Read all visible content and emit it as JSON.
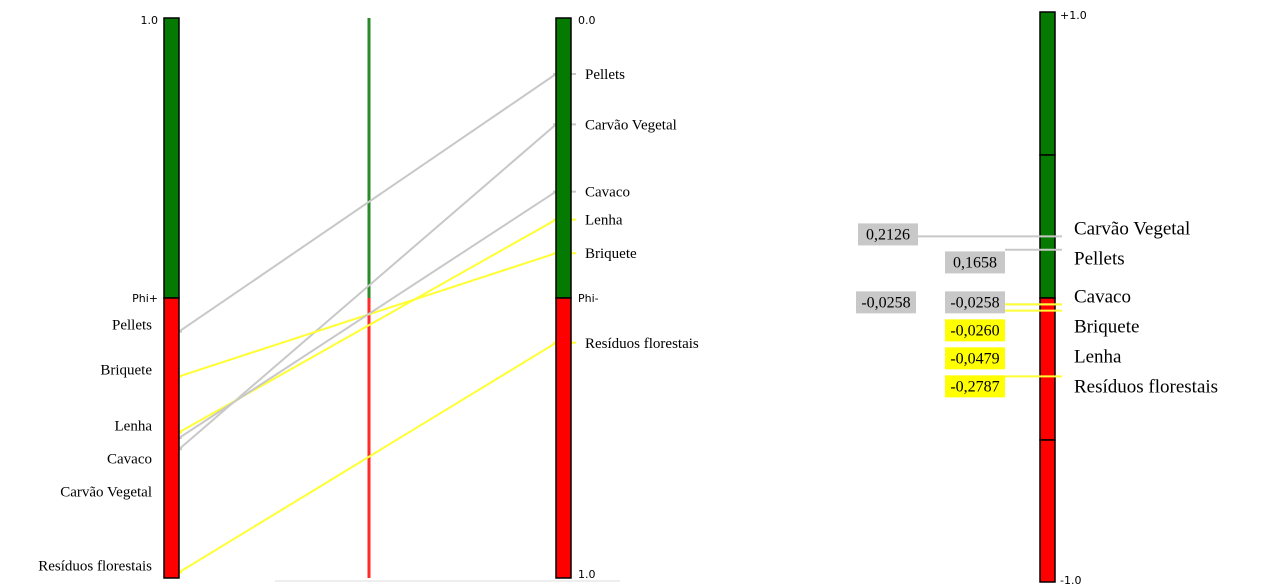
{
  "chart_data": [
    {
      "type": "line",
      "title": "",
      "left_axis": {
        "top_label": "1.0",
        "mid_label": "Phi+"
      },
      "right_axis": {
        "top_label": "0.0",
        "mid_label": "Phi-",
        "bottom_label": "1.0"
      },
      "items": [
        {
          "name": "Carvão Vegetal",
          "phi_plus": 0.23,
          "phi_minus": 0.19,
          "color": "#c8c8c8"
        },
        {
          "name": "Pellets",
          "phi_plus": 0.44,
          "phi_minus": 0.1,
          "color": "#c8c8c8"
        },
        {
          "name": "Briquete",
          "phi_plus": 0.36,
          "phi_minus": 0.42,
          "color": "#ffff33"
        },
        {
          "name": "Lenha",
          "phi_plus": 0.26,
          "phi_minus": 0.36,
          "color": "#ffff33"
        },
        {
          "name": "Cavaco",
          "phi_plus": 0.25,
          "phi_minus": 0.31,
          "color": "#c8c8c8"
        },
        {
          "name": "Resíduos florestais",
          "phi_plus": 0.01,
          "phi_minus": 0.58,
          "color": "#ffff33"
        }
      ]
    },
    {
      "type": "bar",
      "axis": {
        "top_label": "+1.0",
        "bottom_label": "-1.0"
      },
      "items": [
        {
          "name": "Carvão Vegetal",
          "phi": 0.2126,
          "value_label": "0,2126",
          "highlight": "#c8c8c8"
        },
        {
          "name": "Pellets",
          "phi": 0.1658,
          "value_label": "0,1658",
          "highlight": "#c8c8c8"
        },
        {
          "name": "Cavaco",
          "phi": -0.0258,
          "value_label": "-0,0258",
          "highlight": "#c8c8c8"
        },
        {
          "name": "Briquete",
          "phi": -0.026,
          "value_label": "-0,0260",
          "highlight": "#ffff00"
        },
        {
          "name": "Lenha",
          "phi": -0.0479,
          "value_label": "-0,0479",
          "highlight": "#ffff00"
        },
        {
          "name": "Resíduos florestais",
          "phi": -0.2787,
          "value_label": "-0,2787",
          "highlight": "#ffff00"
        }
      ],
      "extra_value_label": "-0,0258"
    }
  ],
  "colors": {
    "positive": "#047a00",
    "negative": "#ff0000"
  }
}
